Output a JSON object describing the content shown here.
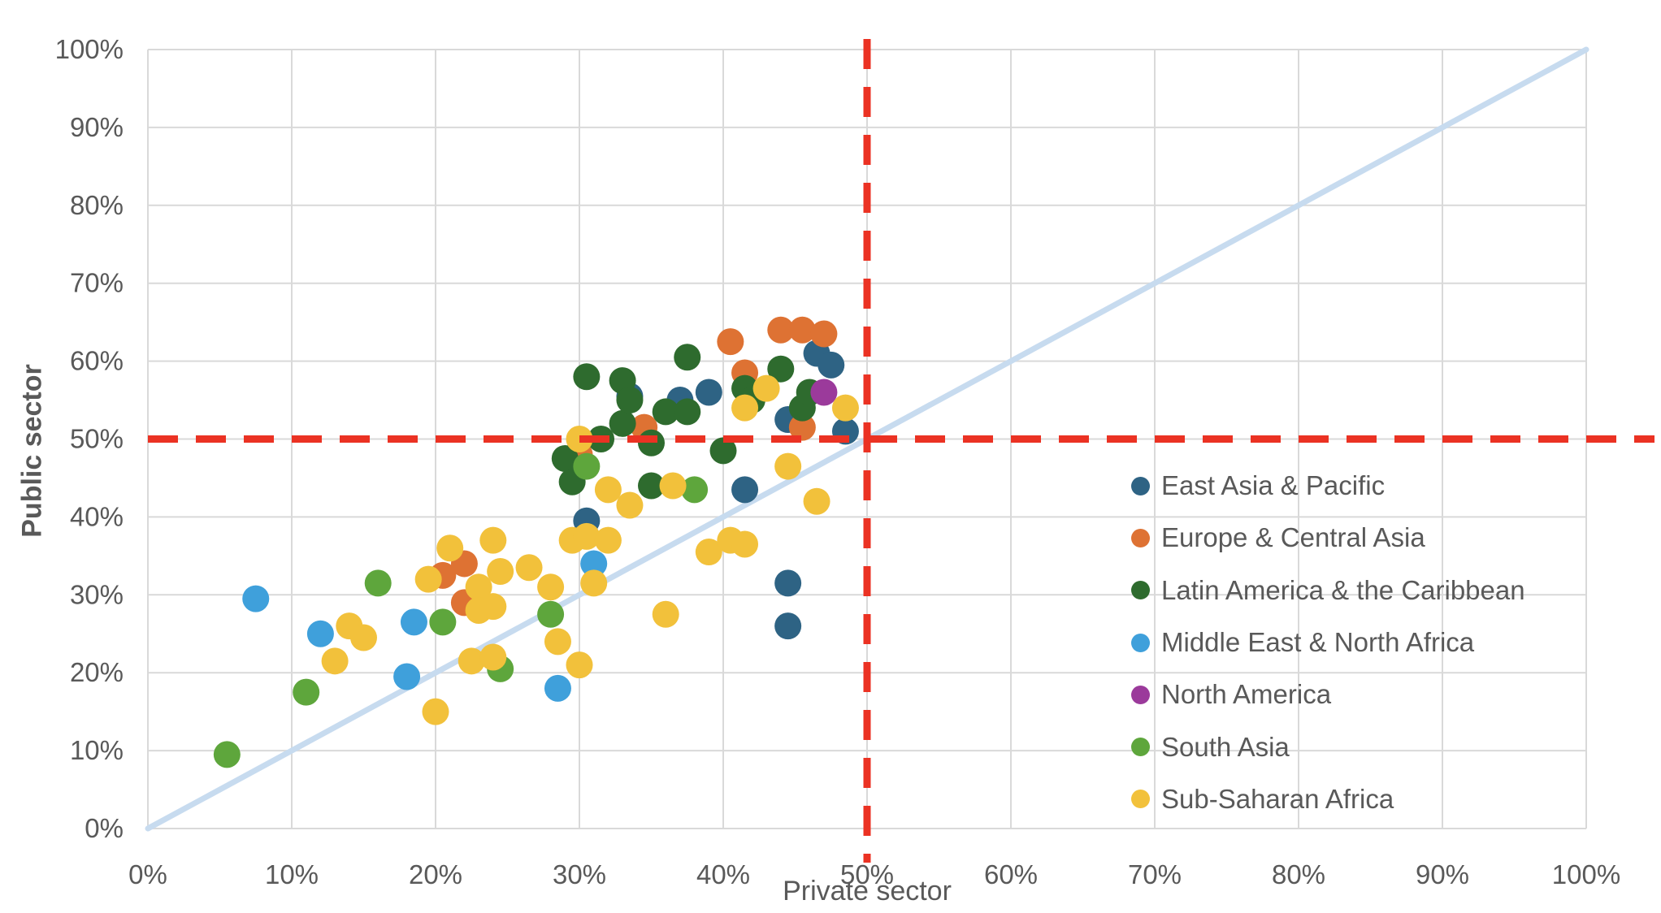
{
  "figure": {
    "x_axis_title": "Private sector",
    "y_axis_title": "Public sector"
  },
  "colors": {
    "background": "#FFFFFF",
    "grid": "#D9D9D9",
    "tick_text": "#595959",
    "identity_line": "#C7DBEF",
    "reference_line": "#EB3223"
  },
  "chart_data": {
    "type": "scatter",
    "title": "",
    "xlabel": "Private sector",
    "ylabel": "Public sector",
    "xlim": [
      0,
      100
    ],
    "ylim": [
      0,
      100
    ],
    "grid": true,
    "legend_position": "right-middle",
    "x_ticks": [
      0,
      10,
      20,
      30,
      40,
      50,
      60,
      70,
      80,
      90,
      100
    ],
    "y_ticks": [
      0,
      10,
      20,
      30,
      40,
      50,
      60,
      70,
      80,
      90,
      100
    ],
    "x_tick_labels": [
      "0%",
      "10%",
      "20%",
      "30%",
      "40%",
      "50%",
      "60%",
      "70%",
      "80%",
      "90%",
      "100%"
    ],
    "y_tick_labels": [
      "0%",
      "10%",
      "20%",
      "30%",
      "40%",
      "50%",
      "60%",
      "70%",
      "80%",
      "90%",
      "100%"
    ],
    "identity_line": {
      "from": [
        0,
        0
      ],
      "to": [
        100,
        100
      ],
      "color": "#C7DBEF"
    },
    "reference_lines": [
      {
        "axis": "y",
        "value": 50,
        "style": "dashed",
        "color": "#EB3223"
      },
      {
        "axis": "x",
        "value": 50,
        "style": "dashed",
        "color": "#EB3223"
      }
    ],
    "units": "percent",
    "series": [
      {
        "name": "East Asia & Pacific",
        "color": "#2E6384",
        "points": [
          [
            30.5,
            39.5
          ],
          [
            33.5,
            55.5
          ],
          [
            37,
            55
          ],
          [
            39,
            56
          ],
          [
            41.5,
            43.5
          ],
          [
            44.5,
            52.5
          ],
          [
            44.5,
            31.5
          ],
          [
            44.5,
            26
          ],
          [
            46.5,
            61
          ],
          [
            47.5,
            59.5
          ],
          [
            48.5,
            51
          ]
        ]
      },
      {
        "name": "Europe & Central Asia",
        "color": "#DE7233",
        "points": [
          [
            20.5,
            32.5
          ],
          [
            22,
            34
          ],
          [
            22,
            29
          ],
          [
            30,
            48
          ],
          [
            34.5,
            51.5
          ],
          [
            40.5,
            62.5
          ],
          [
            41.5,
            58.5
          ],
          [
            44,
            64
          ],
          [
            45.5,
            64
          ],
          [
            47,
            63.5
          ],
          [
            45.5,
            51.5
          ]
        ]
      },
      {
        "name": "Latin America & the Caribbean",
        "color": "#2E6B2E",
        "points": [
          [
            29,
            47.5
          ],
          [
            29.5,
            44.5
          ],
          [
            30.5,
            58
          ],
          [
            31.5,
            50
          ],
          [
            33,
            57.5
          ],
          [
            33,
            52
          ],
          [
            33.5,
            55
          ],
          [
            35,
            49.5
          ],
          [
            35,
            44
          ],
          [
            36,
            53.5
          ],
          [
            37.5,
            53.5
          ],
          [
            37.5,
            60.5
          ],
          [
            40,
            48.5
          ],
          [
            41.5,
            56.5
          ],
          [
            42,
            55
          ],
          [
            44,
            59
          ],
          [
            45.5,
            54
          ],
          [
            46,
            56
          ]
        ]
      },
      {
        "name": "Middle East & North Africa",
        "color": "#3FA0DB",
        "points": [
          [
            7.5,
            29.5
          ],
          [
            12,
            25
          ],
          [
            18,
            19.5
          ],
          [
            18.5,
            26.5
          ],
          [
            28.5,
            18
          ],
          [
            31,
            34
          ]
        ]
      },
      {
        "name": "North America",
        "color": "#9B3A9B",
        "points": [
          [
            47,
            56
          ]
        ]
      },
      {
        "name": "South Asia",
        "color": "#5EA63C",
        "points": [
          [
            5.5,
            9.5
          ],
          [
            11,
            17.5
          ],
          [
            16,
            31.5
          ],
          [
            20.5,
            26.5
          ],
          [
            24.5,
            20.5
          ],
          [
            28,
            27.5
          ],
          [
            30.5,
            46.5
          ],
          [
            38,
            43.5
          ]
        ]
      },
      {
        "name": "Sub-Saharan Africa",
        "color": "#F2C13B",
        "points": [
          [
            13,
            21.5
          ],
          [
            14,
            26
          ],
          [
            15,
            24.5
          ],
          [
            20,
            15
          ],
          [
            19.5,
            32
          ],
          [
            21,
            36
          ],
          [
            22.5,
            21.5
          ],
          [
            24,
            22
          ],
          [
            23,
            31
          ],
          [
            23,
            28
          ],
          [
            24,
            28.5
          ],
          [
            24.5,
            33
          ],
          [
            24,
            37
          ],
          [
            26.5,
            33.5
          ],
          [
            28,
            31
          ],
          [
            28.5,
            24
          ],
          [
            30,
            21
          ],
          [
            29.5,
            37
          ],
          [
            30.5,
            37.5
          ],
          [
            32,
            37
          ],
          [
            31,
            31.5
          ],
          [
            30,
            50
          ],
          [
            32,
            43.5
          ],
          [
            33.5,
            41.5
          ],
          [
            36.5,
            44
          ],
          [
            36,
            27.5
          ],
          [
            39,
            35.5
          ],
          [
            40.5,
            37
          ],
          [
            41.5,
            36.5
          ],
          [
            41.5,
            54
          ],
          [
            43,
            56.5
          ],
          [
            44.5,
            46.5
          ],
          [
            46.5,
            42
          ],
          [
            48.5,
            54
          ]
        ]
      }
    ]
  }
}
